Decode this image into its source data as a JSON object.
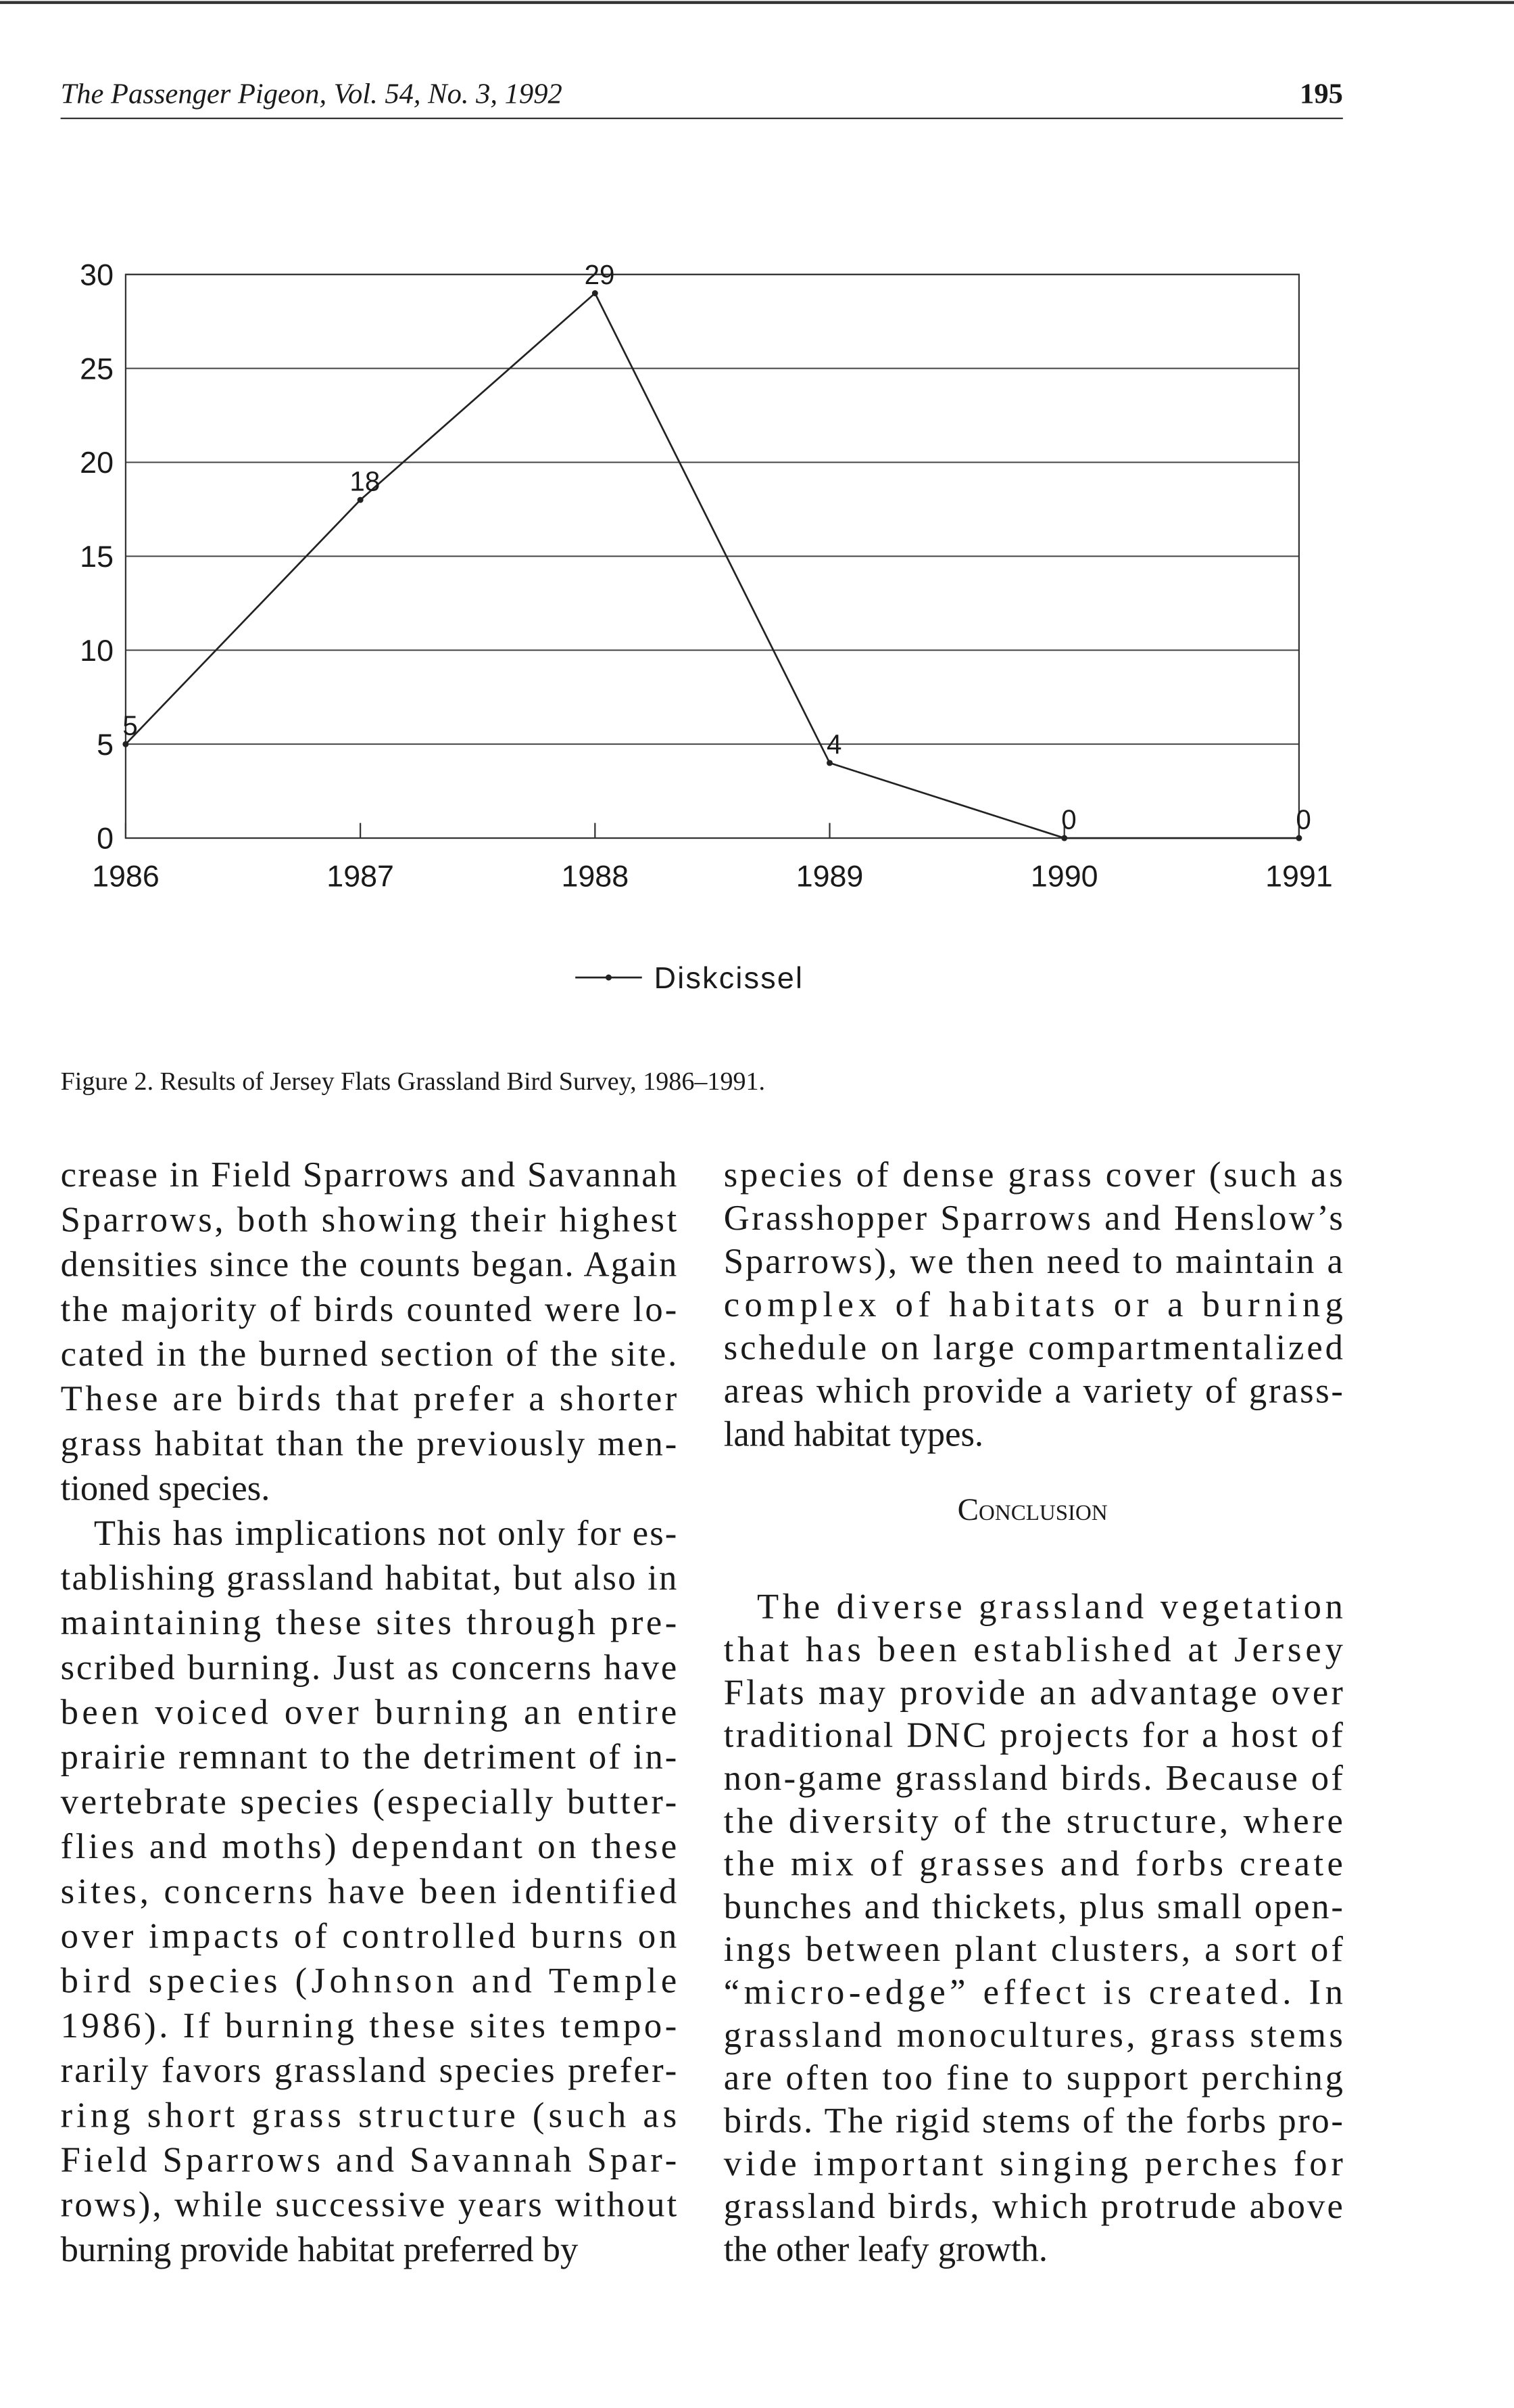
{
  "header": {
    "running_title": "The Passenger Pigeon, Vol. 54, No. 3, 1992",
    "page_number": 195
  },
  "chart_data": {
    "type": "line",
    "x": [
      1986,
      1987,
      1988,
      1989,
      1990,
      1991
    ],
    "xlim": [
      1986,
      1991
    ],
    "xticks": [
      1986,
      1987,
      1988,
      1989,
      1990,
      1991
    ],
    "ylim": [
      0,
      30
    ],
    "yticks": [
      0,
      5,
      10,
      15,
      20,
      25,
      30
    ],
    "grid": true,
    "legend": "bottom",
    "series": [
      {
        "name": "Diskcissel",
        "color": "#222222",
        "values": [
          5,
          18,
          29,
          4,
          0,
          0
        ]
      }
    ]
  },
  "caption": "Figure 2. Results of Jersey Flats Grassland Bird Survey, 1986–1991.",
  "left_column": {
    "paragraphs": [
      [
        "crease in Field Sparrows and Savannah",
        "Sparrows, both showing their highest",
        "densities since the counts began. Again",
        "the majority of birds counted were lo-",
        "cated in the burned section of the site.",
        "These are birds that prefer a shorter",
        "grass habitat than the previously men-",
        "tioned species."
      ],
      [
        "This has implications not only for es-",
        "tablishing grassland habitat, but also in",
        "maintaining these sites through pre-",
        "scribed burning. Just as concerns have",
        "been voiced over burning an entire",
        "prairie remnant to the detriment of in-",
        "vertebrate species (especially butter-",
        "flies and moths) dependant on these",
        "sites, concerns have been identified",
        "over impacts of controlled burns on",
        "bird species (Johnson and Temple",
        "1986). If burning these sites tempo-",
        "rarily favors grassland species prefer-",
        "ring short grass structure (such as",
        "Field Sparrows and Savannah Spar-",
        "rows), while successive years without",
        "burning provide habitat preferred by"
      ]
    ]
  },
  "right_column": {
    "paragraphs": [
      [
        "species of dense grass cover (such as",
        "Grasshopper Sparrows and Henslow’s",
        "Sparrows), we then need to maintain a",
        "complex of habitats or a burning",
        "schedule on large compartmentalized",
        "areas which provide a variety of grass-",
        "land habitat types."
      ]
    ],
    "heading": "Conclusion",
    "conclusion_paragraphs": [
      [
        "The diverse grassland vegetation",
        "that has been established at Jersey",
        "Flats may provide an advantage over",
        "traditional DNC projects for a host of",
        "non-game grassland birds. Because of",
        "the diversity of the structure, where",
        "the mix of grasses and forbs create",
        "bunches and thickets, plus small open-",
        "ings between plant clusters, a sort of",
        "“micro-edge” effect is created. In",
        "grassland monocultures, grass stems",
        "are often too fine to support perching",
        "birds. The rigid stems of the forbs pro-",
        "vide important singing perches for",
        "grassland birds, which protrude above",
        "the other leafy growth."
      ]
    ]
  }
}
